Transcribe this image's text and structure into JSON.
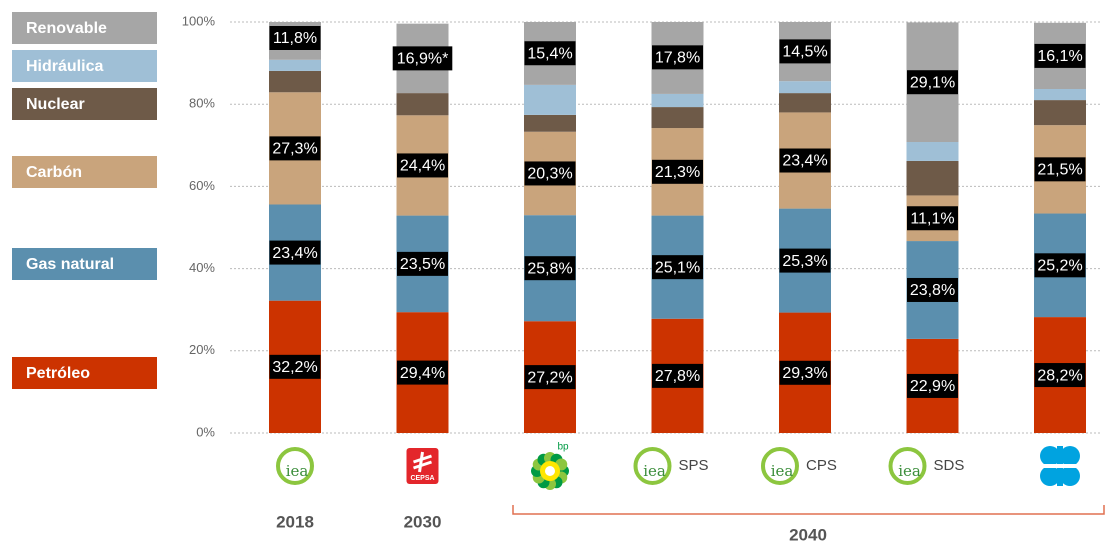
{
  "chart_data": {
    "type": "stacked-bar",
    "categories": [
      null,
      null,
      null,
      "SPS",
      "CPS",
      "SDS",
      null
    ],
    "logos": [
      "iea",
      "CEPSA",
      "bp",
      "iea",
      "iea",
      "iea",
      null
    ],
    "years": [
      "2018",
      "2030",
      "2040"
    ],
    "ylim": [
      0,
      100
    ],
    "yticks": [
      {
        "value": 0,
        "label": "0%"
      },
      {
        "value": 20,
        "label": "20%"
      },
      {
        "value": 40,
        "label": "40%"
      },
      {
        "value": 60,
        "label": "60%"
      },
      {
        "value": 80,
        "label": "80%"
      },
      {
        "value": 100,
        "label": "100%"
      }
    ],
    "grid": true,
    "series": [
      {
        "name": "Petróleo",
        "color": "#cc3300",
        "values": [
          32.2,
          29.4,
          27.2,
          27.8,
          29.3,
          22.9,
          28.2
        ],
        "value_labels": [
          "32,2%",
          "29,4%",
          "27,2%",
          "27,8%",
          "29,3%",
          "22,9%",
          "28,2%"
        ]
      },
      {
        "name": "Gas natural",
        "color": "#5b8fae",
        "values": [
          23.4,
          23.5,
          25.8,
          25.1,
          25.3,
          23.8,
          25.2
        ],
        "value_labels": [
          "23,4%",
          "23,5%",
          "25,8%",
          "25,1%",
          "25,3%",
          "23,8%",
          "25,2%"
        ]
      },
      {
        "name": "Carbón",
        "color": "#c9a47c",
        "values": [
          27.3,
          24.4,
          20.3,
          21.3,
          23.4,
          11.1,
          21.5
        ],
        "value_labels": [
          "27,3%",
          "24,4%",
          "20,3%",
          "21,3%",
          "23,4%",
          "11,1%",
          "21,5%"
        ]
      },
      {
        "name": "Nuclear",
        "color": "#6e5a48",
        "values": [
          5.2,
          5.4,
          4.1,
          5.1,
          4.7,
          8.4,
          6.1
        ]
      },
      {
        "name": "Hidráulica",
        "color": "#9fbfd6",
        "values": [
          2.7,
          0,
          7.3,
          3.2,
          2.9,
          4.6,
          2.7
        ]
      },
      {
        "name": "Renovable",
        "color": "#a6a6a6",
        "values": [
          11.8,
          16.9,
          15.4,
          17.8,
          14.5,
          29.1,
          16.1
        ],
        "value_labels": [
          "11,8%",
          "16,9%*",
          "15,4%",
          "17,8%",
          "14,5%",
          "29,1%",
          "16,1%"
        ]
      }
    ]
  }
}
